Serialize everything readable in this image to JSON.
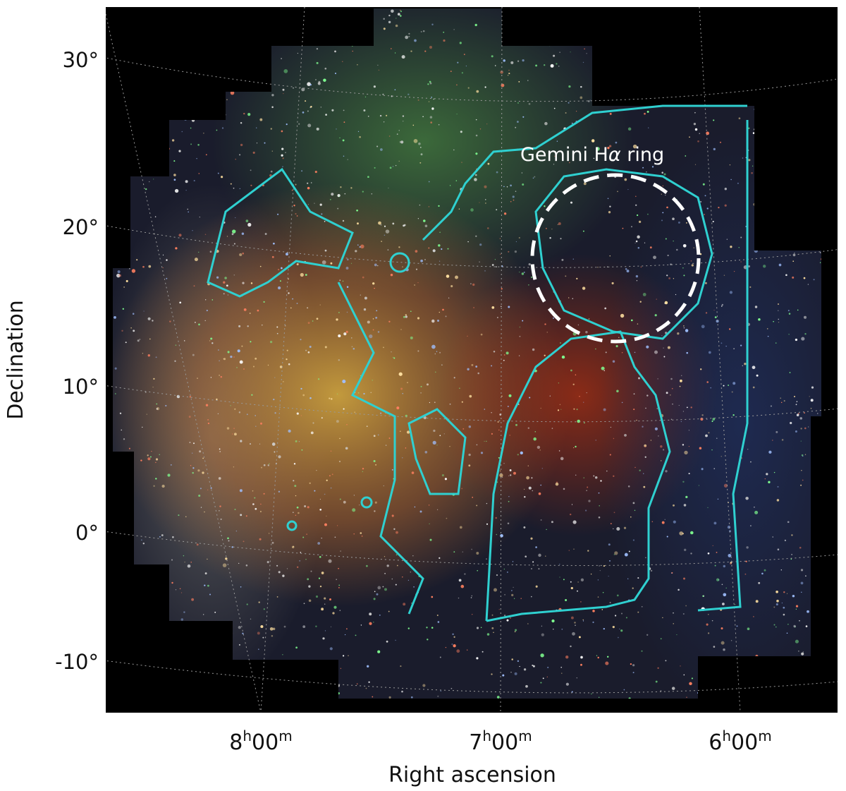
{
  "axes": {
    "x_label": "Right ascension",
    "y_label": "Declination",
    "y_ticks": [
      "30°",
      "20°",
      "10°",
      "0°",
      "-10°"
    ],
    "x_ticks": [
      {
        "hours": "8",
        "h": "h",
        "minutes": "00",
        "m": "m"
      },
      {
        "hours": "7",
        "h": "h",
        "minutes": "00",
        "m": "m"
      },
      {
        "hours": "6",
        "h": "h",
        "minutes": "00",
        "m": "m"
      }
    ]
  },
  "annotation": {
    "prefix": "Gemini H",
    "symbol": "α",
    "suffix": " ring"
  }
}
